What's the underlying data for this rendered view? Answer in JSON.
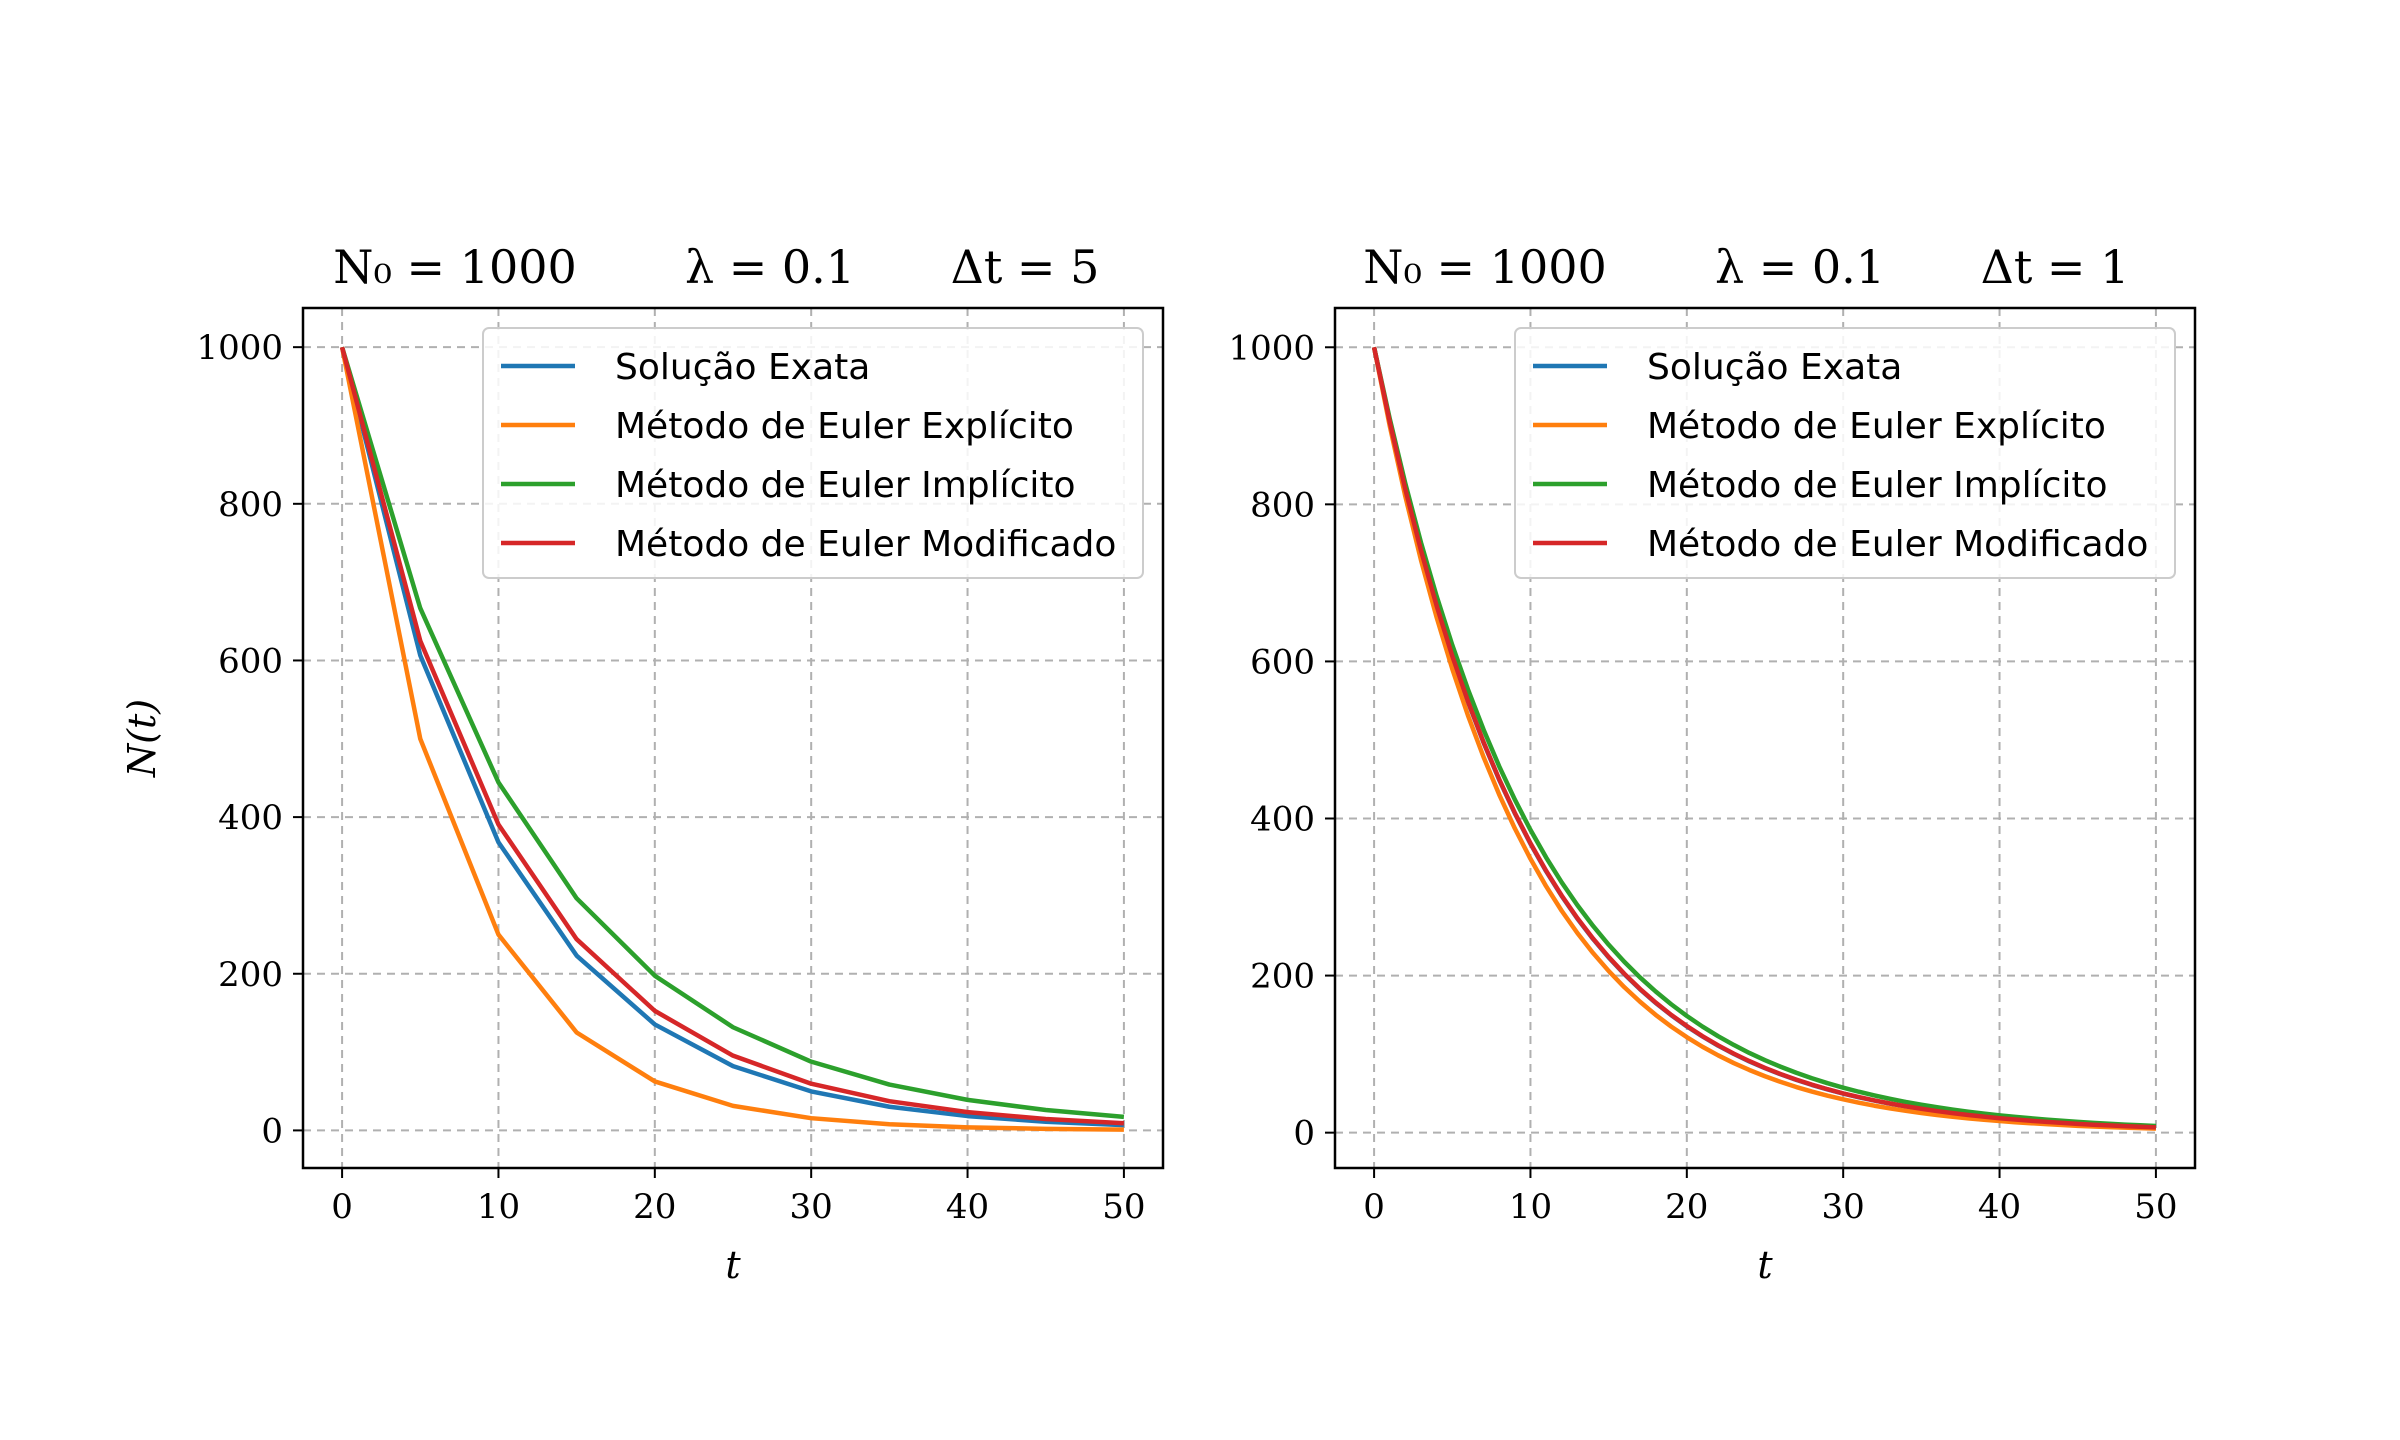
{
  "colors": {
    "exact": "#1f77b4",
    "explicit": "#ff7f0e",
    "implicit": "#2ca02c",
    "modified": "#d62728",
    "grid": "#b0b0b0"
  },
  "chart_data": [
    {
      "type": "line",
      "title_parts": [
        "N₀ = 1000",
        "λ = 0.1",
        "Δt = 5"
      ],
      "xlabel": "t",
      "ylabel": "N(t)",
      "xlim": [
        -2.5,
        52.5
      ],
      "ylim": [
        -48,
        1050
      ],
      "xticks": [
        0,
        10,
        20,
        30,
        40,
        50
      ],
      "yticks": [
        0,
        200,
        400,
        600,
        800,
        1000
      ],
      "grid": true,
      "legend_position": "upper right",
      "x": [
        0,
        5,
        10,
        15,
        20,
        25,
        30,
        35,
        40,
        45,
        50
      ],
      "series": [
        {
          "name": "Solução Exata",
          "color_key": "exact",
          "values": [
            1000,
            606.5,
            367.9,
            223.1,
            135.3,
            82.1,
            49.8,
            30.2,
            18.3,
            11.1,
            6.7
          ]
        },
        {
          "name": "Método de Euler Explícito",
          "color_key": "explicit",
          "values": [
            1000,
            500,
            250,
            125,
            62.5,
            31.3,
            15.6,
            7.8,
            3.9,
            2.0,
            1.0
          ]
        },
        {
          "name": "Método de Euler Implícito",
          "color_key": "implicit",
          "values": [
            1000,
            666.7,
            444.4,
            296.3,
            197.5,
            131.7,
            87.8,
            58.5,
            39.0,
            26.0,
            17.3
          ]
        },
        {
          "name": "Método de Euler Modificado",
          "color_key": "modified",
          "values": [
            1000,
            625,
            390.6,
            244.1,
            152.6,
            95.4,
            59.6,
            37.3,
            23.3,
            14.6,
            9.1
          ]
        }
      ]
    },
    {
      "type": "line",
      "title_parts": [
        "N₀ = 1000",
        "λ = 0.1",
        "Δt = 1"
      ],
      "xlabel": "t",
      "ylabel": "",
      "xlim": [
        -2.5,
        52.5
      ],
      "ylim": [
        -45,
        1050
      ],
      "xticks": [
        0,
        10,
        20,
        30,
        40,
        50
      ],
      "yticks": [
        0,
        200,
        400,
        600,
        800,
        1000
      ],
      "grid": true,
      "legend_position": "upper right",
      "x": [
        0,
        1,
        2,
        3,
        4,
        5,
        6,
        7,
        8,
        9,
        10,
        11,
        12,
        13,
        14,
        15,
        16,
        17,
        18,
        19,
        20,
        21,
        22,
        23,
        24,
        25,
        26,
        27,
        28,
        29,
        30,
        31,
        32,
        33,
        34,
        35,
        36,
        37,
        38,
        39,
        40,
        41,
        42,
        43,
        44,
        45,
        46,
        47,
        48,
        49,
        50
      ],
      "series": [
        {
          "name": "Solução Exata",
          "color_key": "exact",
          "values": [
            1000,
            904.8,
            818.7,
            740.8,
            670.3,
            606.5,
            548.8,
            496.6,
            449.3,
            406.6,
            367.9,
            332.9,
            301.2,
            272.5,
            246.6,
            223.1,
            201.9,
            182.7,
            165.3,
            149.6,
            135.3,
            122.5,
            110.8,
            100.3,
            90.7,
            82.1,
            74.3,
            67.2,
            60.8,
            55.0,
            49.8,
            45.0,
            40.8,
            36.9,
            33.4,
            30.2,
            27.3,
            24.7,
            22.4,
            20.2,
            18.3,
            16.6,
            15.0,
            13.6,
            12.3,
            11.1,
            10.1,
            9.1,
            8.2,
            7.4,
            6.7
          ]
        },
        {
          "name": "Método de Euler Explícito",
          "color_key": "explicit",
          "values": [
            1000,
            900,
            810,
            729,
            656.1,
            590.5,
            531.4,
            478.3,
            430.5,
            387.4,
            348.7,
            313.8,
            282.4,
            254.2,
            228.8,
            205.9,
            185.3,
            166.8,
            150.1,
            135.1,
            121.6,
            109.4,
            98.5,
            88.6,
            79.8,
            71.8,
            64.6,
            58.1,
            52.3,
            47.1,
            42.4,
            38.2,
            34.3,
            30.9,
            27.8,
            25.0,
            22.5,
            20.3,
            18.2,
            16.4,
            14.8,
            13.3,
            12.0,
            10.8,
            9.7,
            8.7,
            7.9,
            7.1,
            6.4,
            5.7,
            5.2
          ]
        },
        {
          "name": "Método de Euler Implícito",
          "color_key": "implicit",
          "values": [
            1000,
            909.1,
            826.4,
            751.3,
            683.0,
            620.9,
            564.5,
            513.2,
            466.5,
            424.1,
            385.5,
            350.5,
            318.6,
            289.7,
            263.3,
            239.4,
            217.6,
            197.8,
            179.9,
            163.5,
            148.6,
            135.1,
            122.8,
            111.7,
            101.5,
            92.3,
            83.9,
            76.3,
            69.3,
            63.0,
            57.3,
            52.1,
            47.4,
            43.1,
            39.1,
            35.6,
            32.4,
            29.4,
            26.7,
            24.3,
            22.1,
            20.1,
            18.3,
            16.6,
            15.1,
            13.7,
            12.5,
            11.3,
            10.3,
            9.4,
            8.5
          ]
        },
        {
          "name": "Método de Euler Modificado",
          "color_key": "modified",
          "values": [
            1000,
            905,
            819,
            741.2,
            670.8,
            607.0,
            549.4,
            497.2,
            449.9,
            407.2,
            368.5,
            333.5,
            301.8,
            273.1,
            247.2,
            223.7,
            202.4,
            183.2,
            165.8,
            150.0,
            135.8,
            122.9,
            111.2,
            100.6,
            91.1,
            82.4,
            74.6,
            67.5,
            61.1,
            55.3,
            50.0,
            45.3,
            41.0,
            37.1,
            33.6,
            30.4,
            27.5,
            24.9,
            22.5,
            20.4,
            18.4,
            16.7,
            15.1,
            13.7,
            12.4,
            11.2,
            10.1,
            9.2,
            8.3,
            7.5,
            6.8
          ]
        }
      ]
    }
  ]
}
